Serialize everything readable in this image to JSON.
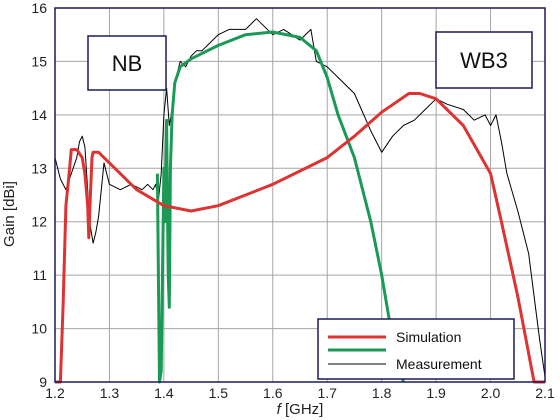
{
  "chart_data": {
    "type": "line",
    "xlabel_italic": "f",
    "xlabel_unit": " [GHz]",
    "ylabel": "Gain [dBi]",
    "xlim": [
      1.2,
      2.1
    ],
    "ylim": [
      9,
      16
    ],
    "xticks": [
      1.2,
      1.3,
      1.4,
      1.5,
      1.6,
      1.7,
      1.8,
      1.9,
      2.0,
      2.1
    ],
    "xtick_labels": [
      "1.2",
      "1.3",
      "1.4",
      "1.5",
      "1.6",
      "1.7",
      "1.8",
      "1.9",
      "2.0",
      "2.1"
    ],
    "yticks": [
      9,
      10,
      11,
      12,
      13,
      14,
      15,
      16
    ],
    "ytick_labels": [
      "9",
      "10",
      "11",
      "12",
      "13",
      "14",
      "15",
      "16"
    ],
    "grid": true,
    "legend_placement": "bottom-right",
    "annotations": [
      {
        "id": "nb",
        "text": "NB",
        "placement": "upper-left"
      },
      {
        "id": "wb3",
        "text": "WB3",
        "placement": "upper-right"
      }
    ],
    "series": [
      {
        "name": "Simulation",
        "color": "#dd3333",
        "x": [
          1.2,
          1.205,
          1.21,
          1.215,
          1.22,
          1.225,
          1.23,
          1.24,
          1.25,
          1.255,
          1.26,
          1.262,
          1.265,
          1.268,
          1.27,
          1.28,
          1.3,
          1.35,
          1.4,
          1.45,
          1.5,
          1.55,
          1.6,
          1.65,
          1.7,
          1.75,
          1.8,
          1.85,
          1.87,
          1.9,
          1.95,
          2.0,
          2.02,
          2.05,
          2.08,
          2.1
        ],
        "y": [
          9.0,
          9.0,
          9.0,
          10.5,
          12.3,
          12.8,
          13.35,
          13.35,
          13.2,
          12.9,
          12.3,
          11.7,
          12.5,
          13.2,
          13.3,
          13.3,
          13.1,
          12.6,
          12.3,
          12.2,
          12.3,
          12.5,
          12.7,
          12.95,
          13.2,
          13.6,
          14.05,
          14.4,
          14.4,
          14.3,
          13.8,
          12.9,
          12.0,
          10.6,
          9.0,
          9.0
        ]
      },
      {
        "name": "Measurement (NB)",
        "color": "#1a9a55",
        "x": [
          1.388,
          1.39,
          1.392,
          1.395,
          1.4,
          1.402,
          1.405,
          1.408,
          1.41,
          1.412,
          1.415,
          1.42,
          1.43,
          1.45,
          1.5,
          1.55,
          1.6,
          1.65,
          1.68,
          1.7,
          1.72,
          1.75,
          1.78,
          1.8,
          1.82,
          1.84
        ],
        "y": [
          12.9,
          11.0,
          9.0,
          9.2,
          13.0,
          12.0,
          13.9,
          11.0,
          10.4,
          13.0,
          14.0,
          14.6,
          14.9,
          15.05,
          15.3,
          15.5,
          15.55,
          15.45,
          15.2,
          14.7,
          14.0,
          13.2,
          12.0,
          11.0,
          9.8,
          9.0
        ]
      },
      {
        "name": "Measurement",
        "color": "#000000",
        "x": [
          1.2,
          1.21,
          1.22,
          1.23,
          1.24,
          1.245,
          1.25,
          1.255,
          1.26,
          1.262,
          1.265,
          1.27,
          1.275,
          1.28,
          1.285,
          1.29,
          1.3,
          1.32,
          1.34,
          1.36,
          1.37,
          1.38,
          1.385,
          1.39,
          1.395,
          1.4,
          1.405,
          1.41,
          1.415,
          1.42,
          1.43,
          1.44,
          1.45,
          1.46,
          1.47,
          1.48,
          1.5,
          1.52,
          1.55,
          1.57,
          1.6,
          1.62,
          1.65,
          1.67,
          1.68,
          1.7,
          1.72,
          1.75,
          1.78,
          1.8,
          1.82,
          1.84,
          1.86,
          1.88,
          1.9,
          1.92,
          1.95,
          1.97,
          1.99,
          2.0,
          2.01,
          2.02,
          2.03,
          2.05,
          2.07,
          2.08,
          2.09,
          2.1
        ],
        "y": [
          13.2,
          12.8,
          12.6,
          12.9,
          13.2,
          13.5,
          13.6,
          13.4,
          12.6,
          12.2,
          11.9,
          11.6,
          11.8,
          12.1,
          12.6,
          13.1,
          12.7,
          12.6,
          12.7,
          12.6,
          12.7,
          12.6,
          12.7,
          12.4,
          12.9,
          14.0,
          14.5,
          13.8,
          14.1,
          14.6,
          15.0,
          14.9,
          15.1,
          15.2,
          15.2,
          15.3,
          15.5,
          15.6,
          15.6,
          15.8,
          15.5,
          15.6,
          15.4,
          15.6,
          15.0,
          14.9,
          14.7,
          14.4,
          13.7,
          13.3,
          13.6,
          13.8,
          13.9,
          14.1,
          14.3,
          14.2,
          14.1,
          13.9,
          14.0,
          13.8,
          14.0,
          13.5,
          12.9,
          12.2,
          11.4,
          10.6,
          9.8,
          9.1
        ]
      }
    ],
    "legend": [
      {
        "label": "Simulation",
        "color": "#dd3333"
      },
      {
        "label": "Measurement",
        "color": "#1a9a55",
        "color2": "#000000"
      }
    ]
  },
  "colors": {
    "frame": "#1c1c5a",
    "grid": "#a6a6a6",
    "background": "#ffffff"
  }
}
